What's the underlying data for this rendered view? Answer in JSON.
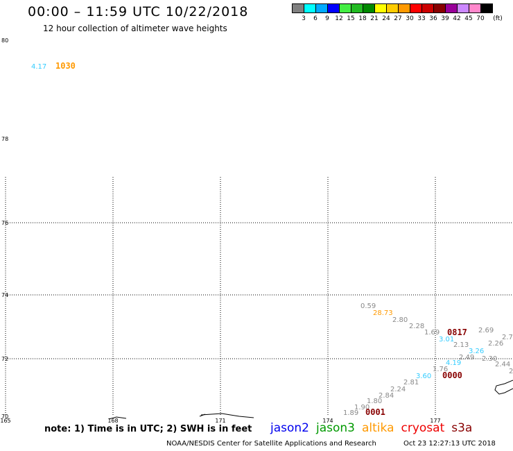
{
  "header": {
    "title": "00:00 – 11:59 UTC 10/22/2018",
    "subtitle": "12 hour collection of altimeter wave heights"
  },
  "color_scale": {
    "colors": [
      "#808080",
      "#00ffff",
      "#00aaff",
      "#0000ff",
      "#44ee44",
      "#22bb22",
      "#008800",
      "#ffff00",
      "#ffcc00",
      "#ff9900",
      "#ff0000",
      "#cc0000",
      "#880000",
      "#990099",
      "#cc88ff",
      "#ff88cc",
      "#000000"
    ],
    "labels": [
      "3",
      "6",
      "9",
      "12",
      "15",
      "18",
      "21",
      "24",
      "27",
      "30",
      "33",
      "36",
      "39",
      "42",
      "45",
      "70",
      "(ft)"
    ]
  },
  "axes": {
    "lat_labels": [
      "80",
      "78",
      "76",
      "74",
      "72",
      "70"
    ],
    "lon_labels": [
      "165",
      "168",
      "171",
      "174",
      "177"
    ]
  },
  "observations": [
    {
      "text": "4.17",
      "color": "#33ccff"
    },
    {
      "text": "0.59",
      "color": "#888888"
    },
    {
      "text": "28.73",
      "color": "#ff9900"
    },
    {
      "text": "2.80",
      "color": "#888888"
    },
    {
      "text": "2.28",
      "color": "#888888"
    },
    {
      "text": "1.69",
      "color": "#888888"
    },
    {
      "text": "3.01",
      "color": "#33ccff"
    },
    {
      "text": "2.13",
      "color": "#888888"
    },
    {
      "text": "3.26",
      "color": "#33ccff"
    },
    {
      "text": "2.69",
      "color": "#888888"
    },
    {
      "text": "2.26",
      "color": "#888888"
    },
    {
      "text": "2.7",
      "color": "#888888"
    },
    {
      "text": "2.49",
      "color": "#888888"
    },
    {
      "text": "2.30",
      "color": "#888888"
    },
    {
      "text": "4.19",
      "color": "#33ccff"
    },
    {
      "text": "2.44",
      "color": "#888888"
    },
    {
      "text": "2",
      "color": "#888888"
    },
    {
      "text": "1.76",
      "color": "#888888"
    },
    {
      "text": "3.60",
      "color": "#33ccff"
    },
    {
      "text": "2.81",
      "color": "#888888"
    },
    {
      "text": "2.24",
      "color": "#888888"
    },
    {
      "text": "2.84",
      "color": "#888888"
    },
    {
      "text": "1.80",
      "color": "#888888"
    },
    {
      "text": "1.90",
      "color": "#888888"
    },
    {
      "text": "1.89",
      "color": "#888888"
    }
  ],
  "pass_codes": [
    {
      "text": "1030",
      "color": "#ff9900"
    },
    {
      "text": "0817",
      "color": "#880000"
    },
    {
      "text": "0000",
      "color": "#880000"
    },
    {
      "text": "0001",
      "color": "#880000"
    }
  ],
  "legend": {
    "note": "note: 1) Time is in UTC; 2) SWH is in feet",
    "missions": [
      {
        "name": "jason2",
        "color": "#0000ee"
      },
      {
        "name": "jason3",
        "color": "#009900"
      },
      {
        "name": "altika",
        "color": "#ff9900"
      },
      {
        "name": "cryosat",
        "color": "#ee0000"
      },
      {
        "name": "s3a",
        "color": "#880000"
      }
    ]
  },
  "footer": {
    "credit": "NOAA/NESDIS Center for Satellite Applications and Research",
    "timestamp": "Oct 23 12:27:13 UTC 2018"
  }
}
